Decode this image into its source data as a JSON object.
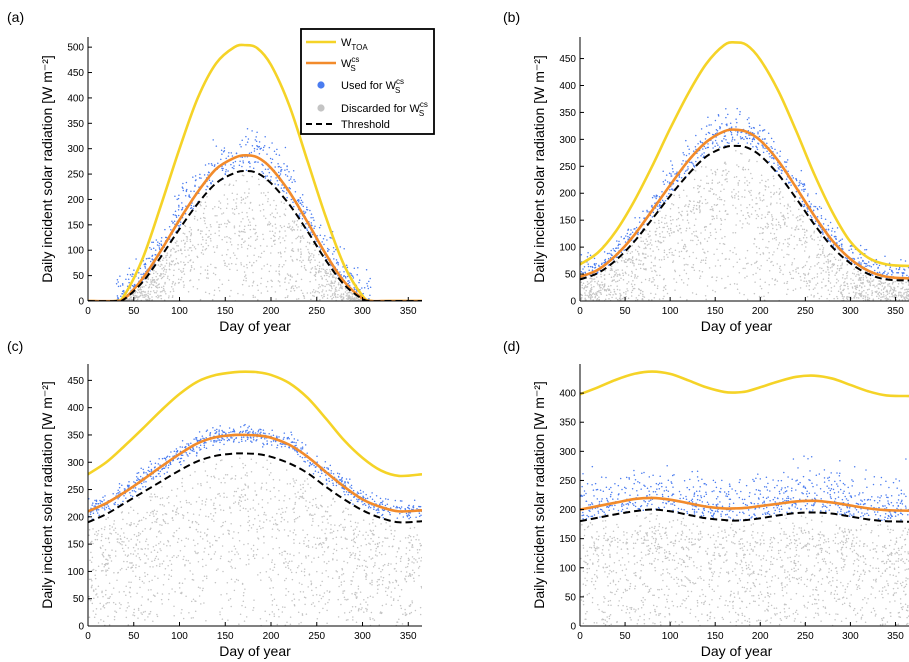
{
  "chart_data": [
    {
      "panel": "(a)",
      "type": "line",
      "xlabel": "Day of year",
      "ylabel": "Daily incident solar radiation [W m⁻²]",
      "xlim": [
        0,
        365
      ],
      "ylim": [
        0,
        520
      ],
      "xticks": [
        0,
        50,
        100,
        150,
        200,
        250,
        300,
        350
      ],
      "yticks": [
        0,
        50,
        100,
        150,
        200,
        250,
        300,
        350,
        400,
        450,
        500
      ],
      "legend_position": "top-right",
      "series": [
        {
          "name": "W_TOA",
          "style": "line",
          "color": "#f5d327",
          "x": [
            0,
            30,
            40,
            60,
            80,
            100,
            120,
            140,
            160,
            172,
            185,
            200,
            220,
            240,
            260,
            280,
            300,
            310,
            330,
            365
          ],
          "y": [
            0,
            0,
            12,
            85,
            190,
            300,
            400,
            468,
            500,
            504,
            498,
            465,
            385,
            275,
            165,
            70,
            10,
            0,
            0,
            0
          ]
        },
        {
          "name": "W_S^cs",
          "style": "line",
          "color": "#f28b2b",
          "x": [
            0,
            30,
            40,
            60,
            80,
            100,
            120,
            140,
            160,
            172,
            185,
            200,
            220,
            240,
            260,
            280,
            300,
            310,
            330,
            365
          ],
          "y": [
            0,
            0,
            5,
            45,
            100,
            160,
            215,
            260,
            282,
            287,
            283,
            262,
            215,
            155,
            92,
            38,
            5,
            0,
            0,
            0
          ]
        },
        {
          "name": "Threshold",
          "style": "dashed",
          "color": "#000000",
          "x": [
            0,
            30,
            40,
            60,
            80,
            100,
            120,
            140,
            160,
            172,
            185,
            200,
            220,
            240,
            260,
            280,
            300,
            310,
            330,
            365
          ],
          "y": [
            0,
            0,
            4,
            38,
            88,
            142,
            192,
            232,
            252,
            256,
            252,
            232,
            190,
            137,
            80,
            32,
            4,
            0,
            0,
            0
          ]
        }
      ],
      "scatter": {
        "used_color": "#4a7cf0",
        "discarded_color": "#c4c4c4",
        "spread": 55
      }
    },
    {
      "panel": "(b)",
      "type": "line",
      "xlabel": "Day of year",
      "ylabel": "Daily incident solar radiation [W m⁻²]",
      "xlim": [
        0,
        365
      ],
      "ylim": [
        0,
        490
      ],
      "xticks": [
        0,
        50,
        100,
        150,
        200,
        250,
        300,
        350
      ],
      "yticks": [
        0,
        50,
        100,
        150,
        200,
        250,
        300,
        350,
        400,
        450
      ],
      "series": [
        {
          "name": "W_TOA",
          "style": "line",
          "color": "#f5d327",
          "x": [
            0,
            20,
            40,
            60,
            80,
            100,
            120,
            140,
            160,
            172,
            185,
            200,
            220,
            240,
            260,
            280,
            300,
            320,
            340,
            365
          ],
          "y": [
            68,
            90,
            130,
            185,
            250,
            320,
            385,
            440,
            475,
            480,
            475,
            448,
            390,
            315,
            235,
            165,
            110,
            80,
            68,
            65
          ]
        },
        {
          "name": "W_S^cs",
          "style": "line",
          "color": "#f28b2b",
          "x": [
            0,
            20,
            40,
            60,
            80,
            100,
            120,
            140,
            160,
            172,
            185,
            200,
            220,
            240,
            260,
            280,
            300,
            320,
            340,
            365
          ],
          "y": [
            45,
            58,
            85,
            122,
            168,
            215,
            260,
            295,
            315,
            318,
            314,
            298,
            260,
            210,
            158,
            112,
            78,
            56,
            45,
            42
          ]
        },
        {
          "name": "Threshold",
          "style": "dashed",
          "color": "#000000",
          "x": [
            0,
            20,
            40,
            60,
            80,
            100,
            120,
            140,
            160,
            172,
            185,
            200,
            220,
            240,
            260,
            280,
            300,
            320,
            340,
            365
          ],
          "y": [
            40,
            52,
            76,
            110,
            152,
            195,
            235,
            268,
            285,
            288,
            285,
            270,
            235,
            190,
            142,
            100,
            70,
            50,
            40,
            38
          ]
        }
      ],
      "scatter": {
        "used_color": "#4a7cf0",
        "discarded_color": "#c4c4c4",
        "spread": 35
      }
    },
    {
      "panel": "(c)",
      "type": "line",
      "xlabel": "Day of year",
      "ylabel": "Daily incident solar radiation [W m⁻²]",
      "xlim": [
        0,
        365
      ],
      "ylim": [
        0,
        480
      ],
      "xticks": [
        0,
        50,
        100,
        150,
        200,
        250,
        300,
        350
      ],
      "yticks": [
        0,
        50,
        100,
        150,
        200,
        250,
        300,
        350,
        400,
        450
      ],
      "series": [
        {
          "name": "W_TOA",
          "style": "line",
          "color": "#f5d327",
          "x": [
            0,
            20,
            40,
            60,
            80,
            100,
            120,
            140,
            160,
            172,
            185,
            200,
            220,
            240,
            260,
            280,
            300,
            320,
            340,
            365
          ],
          "y": [
            278,
            300,
            330,
            362,
            395,
            425,
            448,
            460,
            465,
            466,
            465,
            460,
            445,
            418,
            380,
            340,
            308,
            285,
            275,
            278
          ]
        },
        {
          "name": "W_S^cs",
          "style": "line",
          "color": "#f28b2b",
          "x": [
            0,
            20,
            40,
            60,
            80,
            100,
            120,
            140,
            160,
            172,
            185,
            200,
            220,
            240,
            260,
            280,
            300,
            320,
            340,
            365
          ],
          "y": [
            210,
            225,
            245,
            268,
            292,
            315,
            335,
            346,
            350,
            350,
            349,
            345,
            332,
            310,
            282,
            255,
            232,
            218,
            210,
            212
          ]
        },
        {
          "name": "Threshold",
          "style": "dashed",
          "color": "#000000",
          "x": [
            0,
            20,
            40,
            60,
            80,
            100,
            120,
            140,
            160,
            172,
            185,
            200,
            220,
            240,
            260,
            280,
            300,
            320,
            340,
            365
          ],
          "y": [
            190,
            205,
            225,
            245,
            265,
            285,
            302,
            312,
            316,
            316,
            315,
            310,
            298,
            280,
            255,
            232,
            212,
            198,
            190,
            192
          ]
        }
      ],
      "scatter": {
        "used_color": "#4a7cf0",
        "discarded_color": "#c4c4c4",
        "spread": 18
      }
    },
    {
      "panel": "(d)",
      "type": "line",
      "xlabel": "Day of year",
      "ylabel": "Daily incident solar radiation [W m⁻²]",
      "xlim": [
        0,
        365
      ],
      "ylim": [
        0,
        450
      ],
      "xticks": [
        0,
        50,
        100,
        150,
        200,
        250,
        300,
        350
      ],
      "yticks": [
        0,
        50,
        100,
        150,
        200,
        250,
        300,
        350,
        400
      ],
      "series": [
        {
          "name": "W_TOA",
          "style": "line",
          "color": "#f5d327",
          "x": [
            0,
            20,
            40,
            60,
            80,
            100,
            120,
            140,
            160,
            172,
            185,
            200,
            220,
            240,
            260,
            280,
            300,
            320,
            340,
            365
          ],
          "y": [
            398,
            410,
            423,
            433,
            437,
            433,
            422,
            410,
            402,
            401,
            403,
            410,
            420,
            428,
            430,
            425,
            414,
            403,
            396,
            395
          ]
        },
        {
          "name": "W_S^cs",
          "style": "line",
          "color": "#f28b2b",
          "x": [
            0,
            20,
            40,
            60,
            80,
            100,
            120,
            140,
            160,
            172,
            185,
            200,
            220,
            240,
            260,
            280,
            300,
            320,
            340,
            365
          ],
          "y": [
            200,
            206,
            212,
            218,
            220,
            217,
            211,
            205,
            202,
            202,
            203,
            206,
            210,
            214,
            215,
            212,
            207,
            202,
            199,
            198
          ]
        },
        {
          "name": "Threshold",
          "style": "dashed",
          "color": "#000000",
          "x": [
            0,
            20,
            40,
            60,
            80,
            100,
            120,
            140,
            160,
            172,
            185,
            200,
            220,
            240,
            260,
            280,
            300,
            320,
            340,
            365
          ],
          "y": [
            180,
            186,
            192,
            197,
            200,
            197,
            191,
            185,
            182,
            181,
            182,
            185,
            190,
            194,
            195,
            193,
            188,
            183,
            180,
            179
          ]
        }
      ],
      "scatter": {
        "used_color": "#4a7cf0",
        "discarded_color": "#c4c4c4",
        "spread": 60
      }
    }
  ],
  "legend": {
    "items": [
      {
        "key": "toa",
        "label": "W",
        "sub": "TOA",
        "sup": ""
      },
      {
        "key": "ws",
        "label": "W",
        "sub": "S",
        "sup": "cs"
      },
      {
        "key": "used",
        "label": "Used for W",
        "sub": "S",
        "sup": "cs"
      },
      {
        "key": "discarded",
        "label": "Discarded for W",
        "sub": "S",
        "sup": "cs"
      },
      {
        "key": "threshold",
        "label": "Threshold",
        "sub": "",
        "sup": ""
      }
    ]
  }
}
